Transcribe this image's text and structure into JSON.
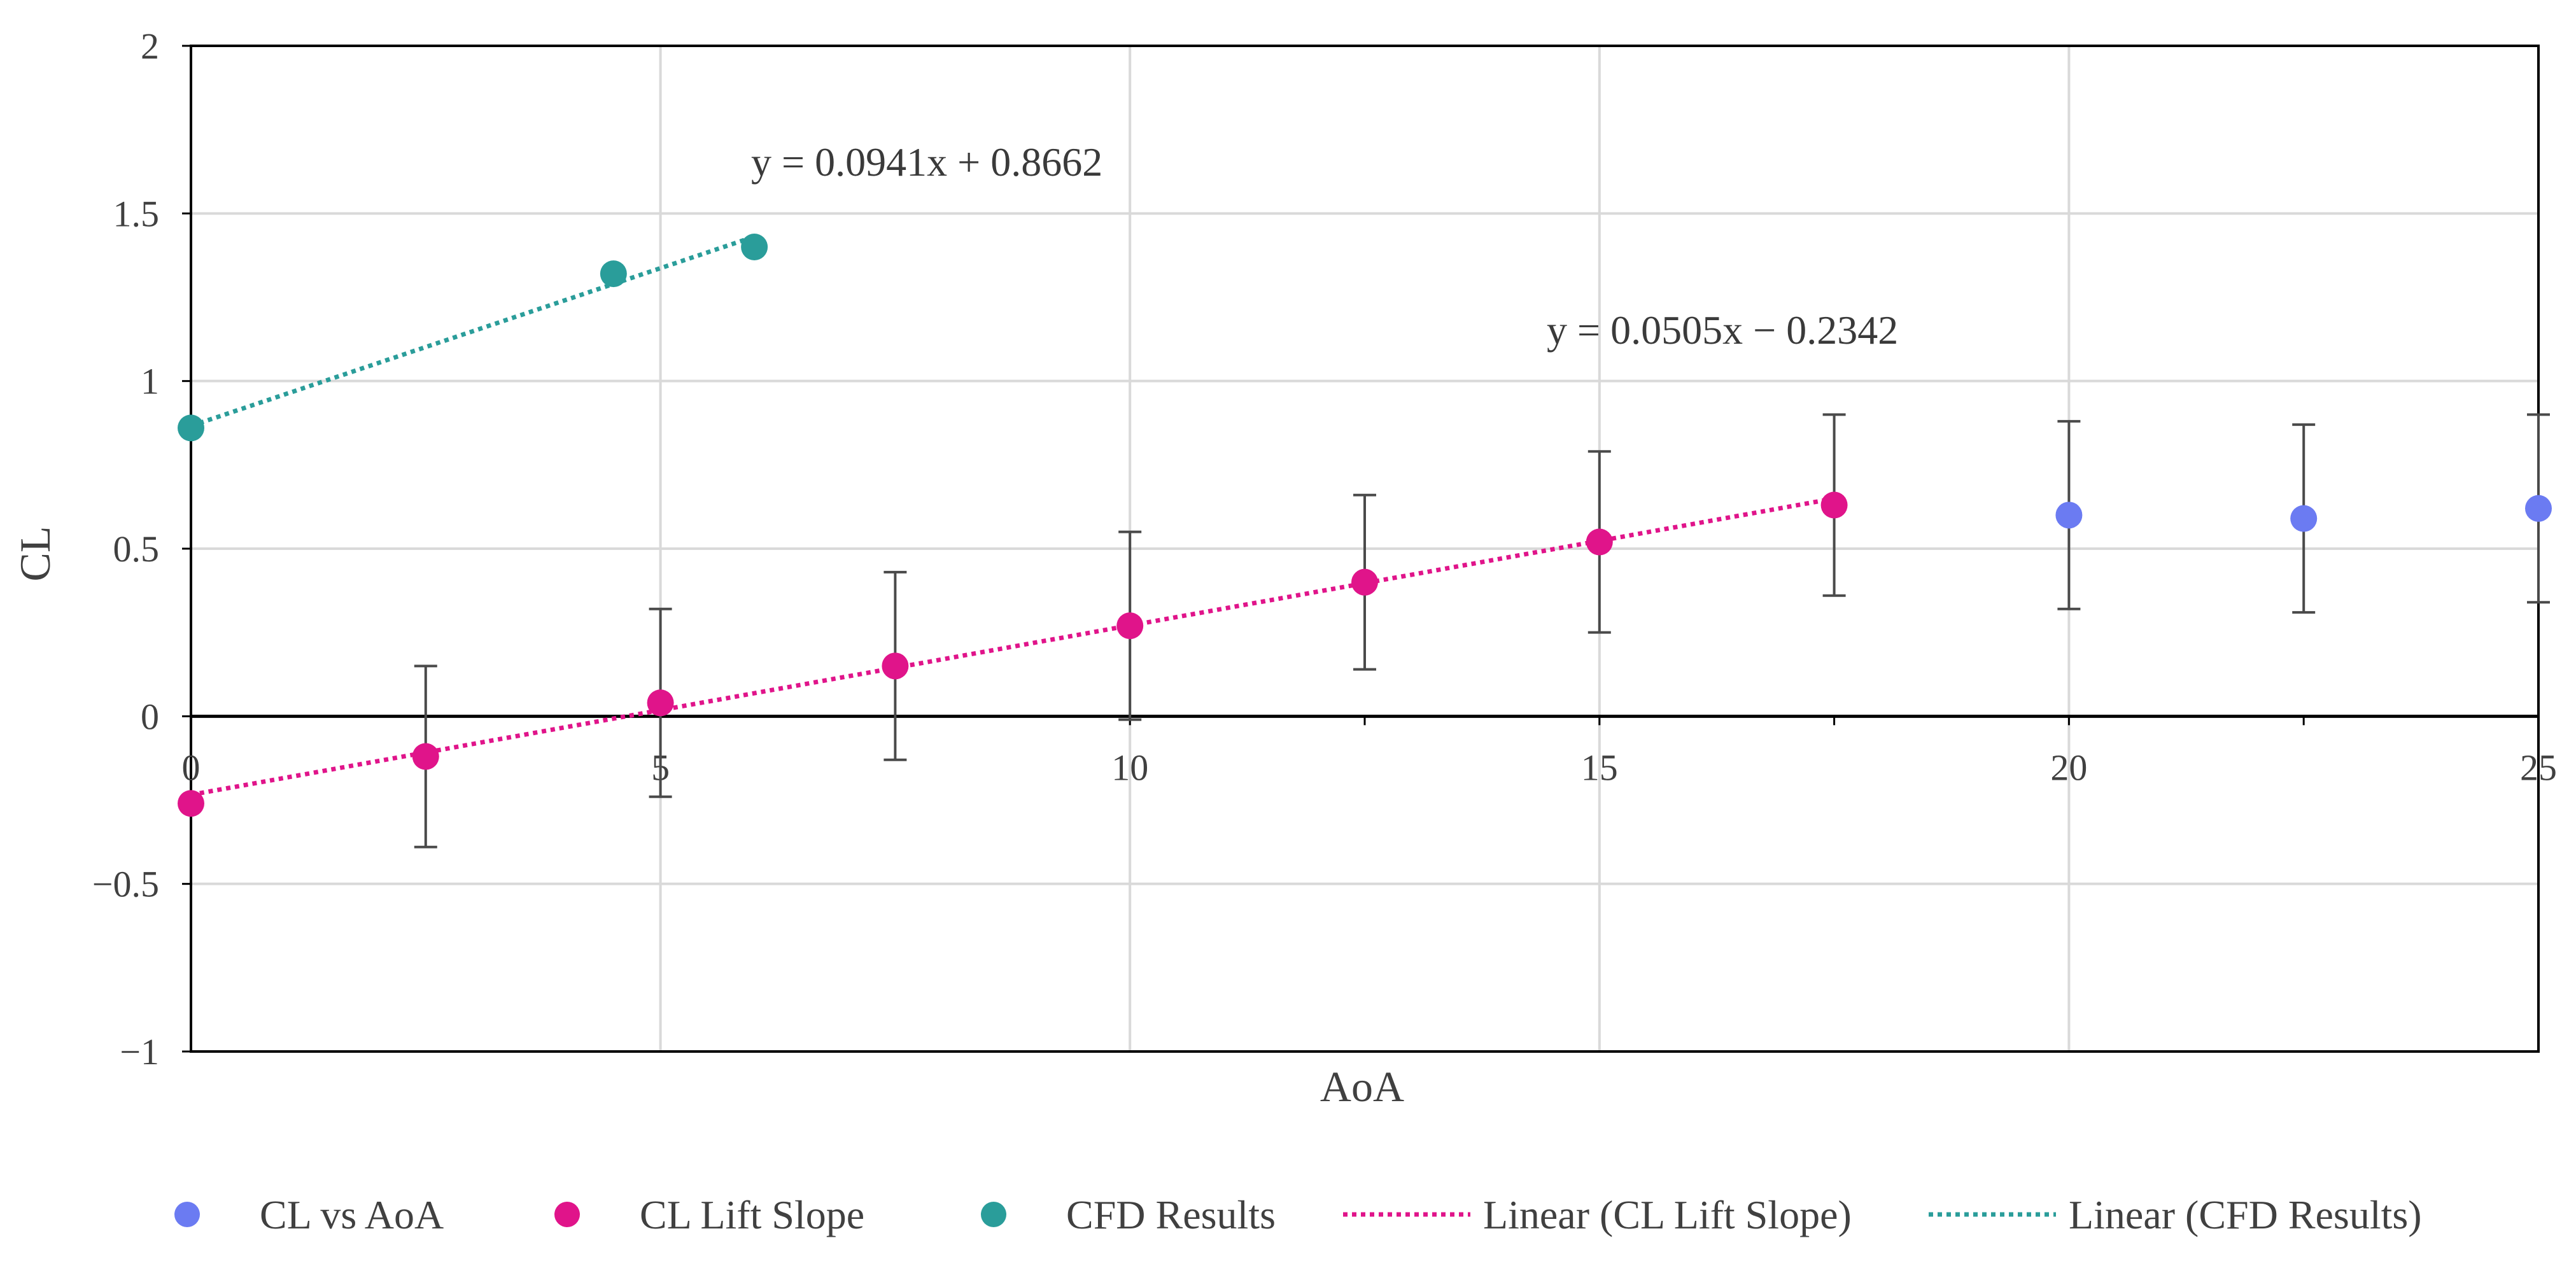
{
  "chart_data": {
    "type": "scatter",
    "xlabel": "AoA",
    "ylabel": "CL",
    "xlim": [
      0,
      25
    ],
    "ylim": [
      -1,
      2
    ],
    "x_ticks": [
      0,
      5,
      10,
      15,
      20,
      25
    ],
    "y_ticks": [
      -1,
      -0.5,
      0,
      0.5,
      1,
      1.5,
      2
    ],
    "x_tick_labels": [
      "0",
      "5",
      "10",
      "15",
      "20",
      "25"
    ],
    "y_tick_labels": [
      "−1",
      "−0.5",
      "0",
      "0.5",
      "1",
      "1.5",
      "2"
    ],
    "grid": true,
    "legend_position": "bottom",
    "series": [
      {
        "name": "CL vs AoA",
        "color": "#6B7BF2",
        "marker": "circle",
        "x": [
          20,
          22.5,
          25
        ],
        "y": [
          0.6,
          0.59,
          0.62
        ],
        "error": [
          0.28,
          0.28,
          0.28
        ]
      },
      {
        "name": "CL Lift Slope",
        "color": "#E0148A",
        "marker": "circle",
        "x": [
          0,
          2.5,
          5,
          7.5,
          10,
          12.5,
          15,
          17.5
        ],
        "y": [
          -0.26,
          -0.12,
          0.04,
          0.15,
          0.27,
          0.4,
          0.52,
          0.63
        ],
        "error": [
          0,
          0.27,
          0.28,
          0.28,
          0.28,
          0.26,
          0.27,
          0.27
        ]
      },
      {
        "name": "CFD Results",
        "color": "#2A9D9A",
        "marker": "circle",
        "x": [
          0,
          4.5,
          6
        ],
        "y": [
          0.86,
          1.32,
          1.4
        ]
      }
    ],
    "trendlines": [
      {
        "name": "Linear (CL Lift Slope)",
        "color": "#E0148A",
        "style": "dotted",
        "slope": 0.0505,
        "intercept": -0.2342,
        "x_range": [
          0,
          17.5
        ],
        "equation": "y = 0.0505x − 0.2342"
      },
      {
        "name": "Linear (CFD Results)",
        "color": "#2A9D9A",
        "style": "dotted",
        "slope": 0.0941,
        "intercept": 0.8662,
        "x_range": [
          0,
          6
        ],
        "equation": "y = 0.0941x + 0.8662"
      }
    ]
  }
}
